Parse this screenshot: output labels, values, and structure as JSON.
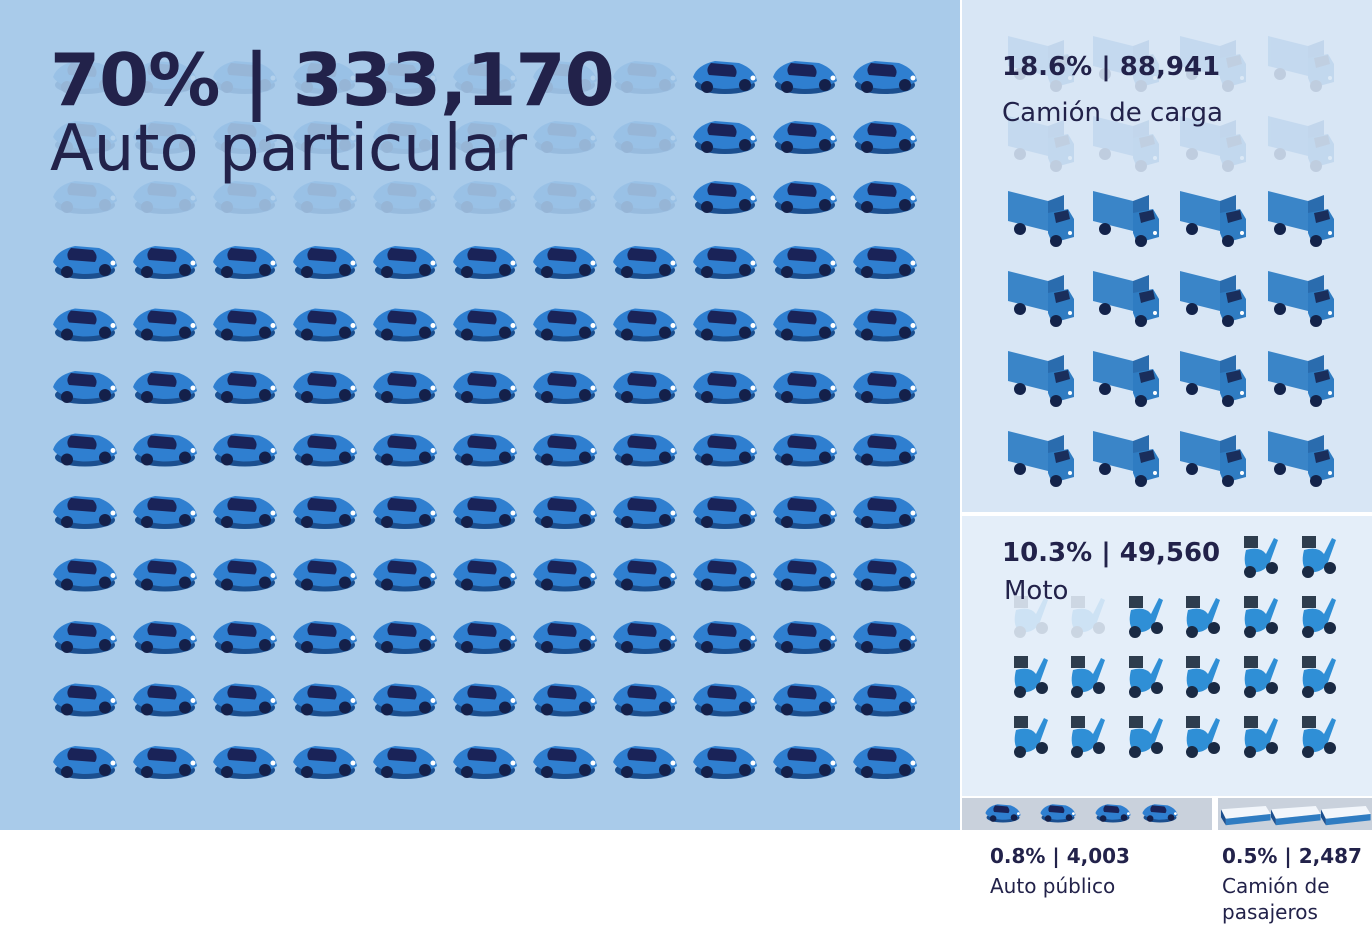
{
  "panels": [
    {
      "stat": "70% | 333,170",
      "label": "Auto particular"
    },
    {
      "stat": "18.6% | 88,941",
      "label": "Camión de carga"
    },
    {
      "stat": "10.3% | 49,560",
      "label": "Moto"
    },
    {
      "stat": "0.8% | 4,003",
      "label": "Auto público"
    },
    {
      "stat": "0.5% | 2,487",
      "label": "Camión de pasajeros"
    }
  ]
}
